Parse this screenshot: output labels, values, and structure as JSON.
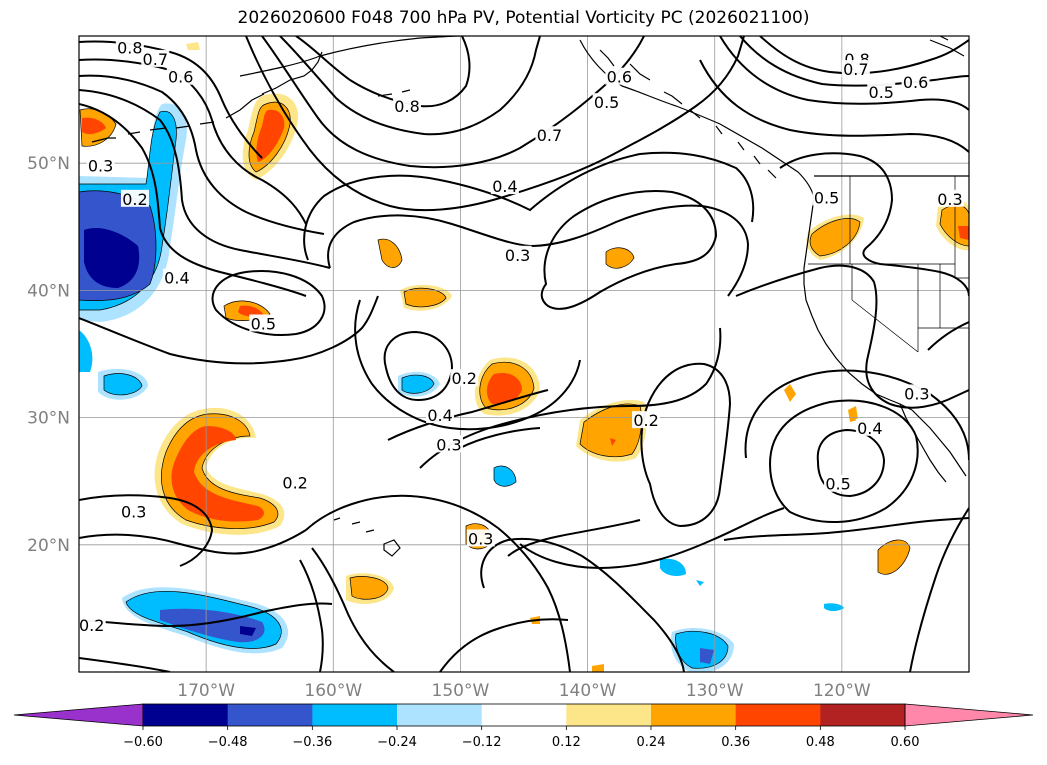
{
  "title": "2026020600 F048 700 hPa PV, Potential Vorticity PC (2026021100)",
  "map": {
    "projection": "PlateCarree",
    "lon_range": [
      -180,
      -110
    ],
    "lat_range": [
      10,
      60
    ],
    "colors": {
      "coast": "#000000",
      "grid": "#999999",
      "contour": "#000000",
      "axis_label": "#808080"
    }
  },
  "axes": {
    "lat_labels": [
      {
        "lat": 50,
        "label": "50°N"
      },
      {
        "lat": 40,
        "label": "40°N"
      },
      {
        "lat": 30,
        "label": "30°N"
      },
      {
        "lat": 20,
        "label": "20°N"
      }
    ],
    "lon_labels": [
      {
        "lon": -170,
        "label": "170°W"
      },
      {
        "lon": -160,
        "label": "160°W"
      },
      {
        "lon": -150,
        "label": "150°W"
      },
      {
        "lon": -140,
        "label": "140°W"
      },
      {
        "lon": -130,
        "label": "130°W"
      },
      {
        "lon": -120,
        "label": "120°W"
      }
    ]
  },
  "contour_labels": [
    {
      "text": "0.8",
      "lon": -176,
      "lat": 59.1
    },
    {
      "text": "0.7",
      "lon": -174,
      "lat": 58.2
    },
    {
      "text": "0.6",
      "lon": -172,
      "lat": 56.8
    },
    {
      "text": "0.8",
      "lon": -154.2,
      "lat": 54.5
    },
    {
      "text": "0.7",
      "lon": -143,
      "lat": 52.2
    },
    {
      "text": "0.6",
      "lon": -137.5,
      "lat": 56.8
    },
    {
      "text": "0.5",
      "lon": -138.5,
      "lat": 54.8
    },
    {
      "text": "0.8",
      "lon": -118.8,
      "lat": 58.2
    },
    {
      "text": "0.7",
      "lon": -118.9,
      "lat": 57.4
    },
    {
      "text": "0.5",
      "lon": -116.9,
      "lat": 55.6
    },
    {
      "text": "0.6",
      "lon": -114.2,
      "lat": 56.4
    },
    {
      "text": "0.3",
      "lon": -178.3,
      "lat": 49.8
    },
    {
      "text": "0.2",
      "lon": -175.6,
      "lat": 47.2
    },
    {
      "text": "0.4",
      "lon": -172.3,
      "lat": 41
    },
    {
      "text": "0.5",
      "lon": -165.5,
      "lat": 37.4
    },
    {
      "text": "0.4",
      "lon": -146.5,
      "lat": 48.2
    },
    {
      "text": "0.3",
      "lon": -145.5,
      "lat": 42.8
    },
    {
      "text": "0.5",
      "lon": -121.2,
      "lat": 47.3
    },
    {
      "text": "0.3",
      "lon": -111.5,
      "lat": 47.2
    },
    {
      "text": "0.2",
      "lon": -149.7,
      "lat": 33.1
    },
    {
      "text": "0.4",
      "lon": -151.6,
      "lat": 30.2
    },
    {
      "text": "0.3",
      "lon": -150.9,
      "lat": 27.9
    },
    {
      "text": "0.2",
      "lon": -135.4,
      "lat": 29.8
    },
    {
      "text": "0.4",
      "lon": -117.8,
      "lat": 29.2
    },
    {
      "text": "0.5",
      "lon": -120.3,
      "lat": 24.8
    },
    {
      "text": "0.2",
      "lon": -163,
      "lat": 24.9
    },
    {
      "text": "0.3",
      "lon": -175.7,
      "lat": 22.6
    },
    {
      "text": "0.3",
      "lon": -148.4,
      "lat": 20.5
    },
    {
      "text": "0.2",
      "lon": -179,
      "lat": 13.7
    },
    {
      "text": "0.3",
      "lon": -114.1,
      "lat": 31.9
    }
  ],
  "colorbar": {
    "levels": [
      -0.72,
      -0.6,
      -0.48,
      -0.36,
      -0.24,
      -0.12,
      0.12,
      0.24,
      0.36,
      0.48,
      0.6,
      0.72
    ],
    "colors": [
      "#000090",
      "#3555cc",
      "#00bdff",
      "#aee3ff",
      "#ffffff",
      "#fde68a",
      "#ffa400",
      "#ff4500",
      "#b22222",
      "#ff88aa"
    ],
    "under_color": "#9932cc",
    "over_color": "#ff88aa",
    "tick_labels": [
      "−0.60",
      "−0.48",
      "−0.36",
      "−0.24",
      "−0.12",
      "0.12",
      "0.24",
      "0.36",
      "0.48",
      "0.60"
    ]
  }
}
